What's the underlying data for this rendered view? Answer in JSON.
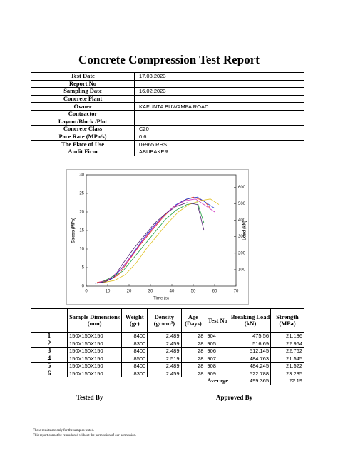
{
  "title": "Concrete Compression Test Report",
  "info": [
    {
      "label": "Test Date",
      "value": "17.03.2023"
    },
    {
      "label": "Report No"
    },
    {
      "label": "Sampling Date",
      "value": "16.02.2023"
    },
    {
      "label": "Concrete Plant"
    },
    {
      "label": "Owner",
      "value": "KAFUNTA BUWAMPA ROAD"
    },
    {
      "label": "Contractor"
    },
    {
      "label": "Layout/Block /Plot"
    },
    {
      "label": "Concrete Class",
      "value": "C20"
    },
    {
      "label": "Pace Rate (MPa/s)",
      "value": "0.6"
    },
    {
      "label": "The Place of Use",
      "value": "0+965 RHS"
    },
    {
      "label": "Audit Firm",
      "value": "ABUBAKER"
    }
  ],
  "chart": {
    "type": "line",
    "x_label": "Time (s)",
    "y_label": "Stress (MPa)",
    "y2_label": "Load (kN)",
    "xlim": [
      0,
      70
    ],
    "xticks": [
      0,
      10,
      20,
      30,
      40,
      50,
      60,
      70
    ],
    "ylim": [
      0,
      30
    ],
    "yticks": [
      0,
      5,
      10,
      15,
      20,
      25,
      30
    ],
    "y2lim": [
      0,
      675
    ],
    "y2ticks": [
      100,
      200,
      300,
      400,
      500,
      600
    ],
    "series": [
      {
        "color": "#e0301e",
        "x": [
          5,
          10,
          15,
          20,
          25,
          30,
          35,
          40,
          45,
          50,
          55,
          58
        ],
        "values": [
          1,
          1.5,
          3,
          7,
          11,
          14.5,
          18,
          21,
          23,
          24,
          23,
          21
        ]
      },
      {
        "color": "#2040d0",
        "x": [
          4,
          8,
          12,
          17,
          22,
          27,
          32,
          37,
          42,
          47,
          52,
          56,
          60
        ],
        "values": [
          0.8,
          1,
          2,
          5,
          9,
          13,
          16.5,
          19.5,
          22,
          23.5,
          24,
          22.5,
          21
        ]
      },
      {
        "color": "#d030c0",
        "x": [
          6,
          11,
          16,
          21,
          26,
          31,
          36,
          41,
          46,
          51,
          55,
          60
        ],
        "values": [
          1,
          2,
          4.5,
          8,
          12,
          15.5,
          19,
          21.5,
          23,
          23.5,
          22,
          20
        ]
      },
      {
        "color": "#20a040",
        "x": [
          7,
          12,
          17,
          22,
          27,
          32,
          37,
          42,
          47,
          52,
          55
        ],
        "values": [
          1,
          2.5,
          4,
          7.5,
          11,
          14.5,
          18,
          20.5,
          22,
          22.5,
          17
        ]
      },
      {
        "color": "#e0c020",
        "x": [
          8,
          13,
          18,
          23,
          28,
          33,
          38,
          43,
          48,
          53,
          58,
          62
        ],
        "values": [
          1,
          1.5,
          3,
          6,
          10,
          13.5,
          17,
          20,
          22,
          23,
          23.5,
          22
        ]
      },
      {
        "color": "#502070",
        "x": [
          5,
          9,
          13,
          17,
          22,
          27,
          32,
          37,
          42,
          47,
          52,
          55
        ],
        "values": [
          0.8,
          1.2,
          2.5,
          6,
          10,
          13.5,
          17,
          19.5,
          21.5,
          22.5,
          22,
          15
        ]
      }
    ]
  },
  "results": {
    "headers": [
      "Sample Dimensions (mm)",
      "Weight (gr)",
      "Density (gr/cm³)",
      "Age (Days)",
      "Test No",
      "Breaking Load (kN)",
      "Strength (MPa)"
    ],
    "rows": [
      [
        "1",
        "150X150X150",
        "8400",
        "2.489",
        "28",
        "904",
        "475.56",
        "21.136"
      ],
      [
        "2",
        "150X150X150",
        "8300",
        "2.459",
        "28",
        "905",
        "516.69",
        "22.964"
      ],
      [
        "3",
        "150X150X150",
        "8400",
        "2.489",
        "28",
        "906",
        "512.145",
        "22.762"
      ],
      [
        "4",
        "150X150X150",
        "8500",
        "2.519",
        "28",
        "907",
        "484.763",
        "21.545"
      ],
      [
        "5",
        "150X150X150",
        "8400",
        "2.489",
        "28",
        "908",
        "484.245",
        "21.522"
      ],
      [
        "6",
        "150X150X150",
        "8300",
        "2.459",
        "28",
        "909",
        "522.788",
        "23.235"
      ]
    ],
    "average": {
      "label": "Average",
      "load": "499.365",
      "strength": "22.19"
    }
  },
  "signatures": {
    "tested_by": "Tested By",
    "approved_by": "Approved By"
  },
  "notes": [
    "These results are only for the samples tested.",
    "This report cannot be reproduced without the permission of our permission."
  ]
}
